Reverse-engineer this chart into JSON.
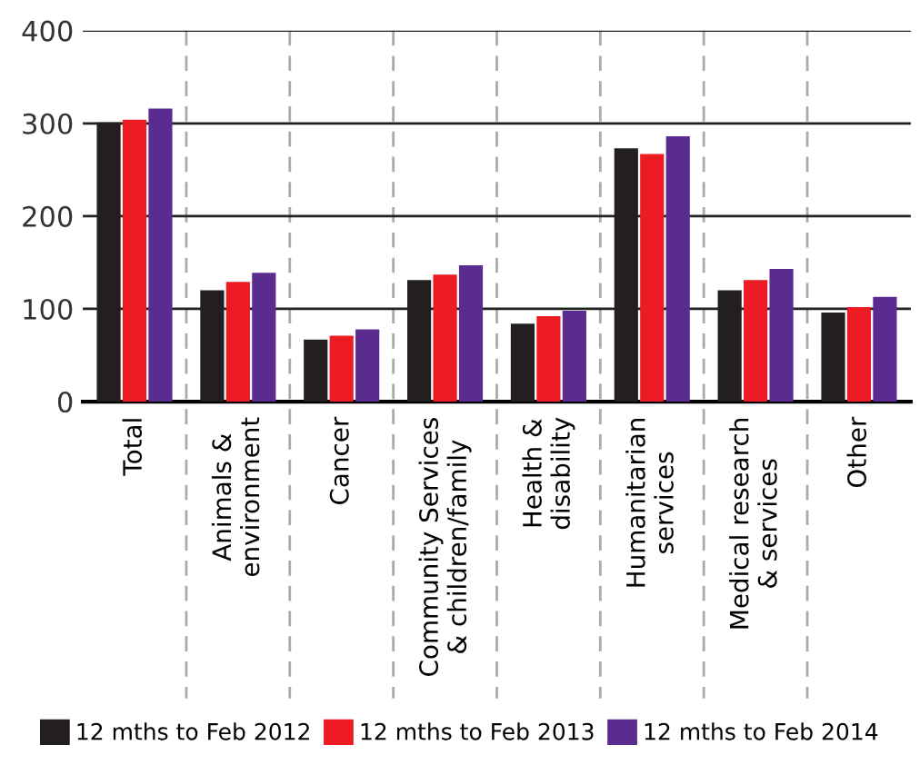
{
  "chart_data": {
    "type": "bar",
    "categories": [
      "Total",
      "Animals &\nenvironment",
      "Cancer",
      "Community Services\n& children/family",
      "Health &\ndisability",
      "Humanitarian\nservices",
      "Medical research\n& services",
      "Other"
    ],
    "series": [
      {
        "name": "12 mths to Feb 2012",
        "color": "#231f20",
        "values": [
          301,
          120,
          67,
          131,
          84,
          273,
          120,
          96
        ]
      },
      {
        "name": "12 mths to Feb 2013",
        "color": "#ed1c24",
        "values": [
          304,
          129,
          71,
          137,
          92,
          267,
          131,
          102
        ]
      },
      {
        "name": "12 mths to Feb 2014",
        "color": "#5b2c8f",
        "values": [
          316,
          139,
          78,
          147,
          98,
          286,
          143,
          113
        ]
      }
    ],
    "ylim": [
      0,
      400
    ],
    "yticks": [
      0,
      100,
      200,
      300,
      400
    ],
    "grid": "y",
    "legend": "bottom"
  }
}
